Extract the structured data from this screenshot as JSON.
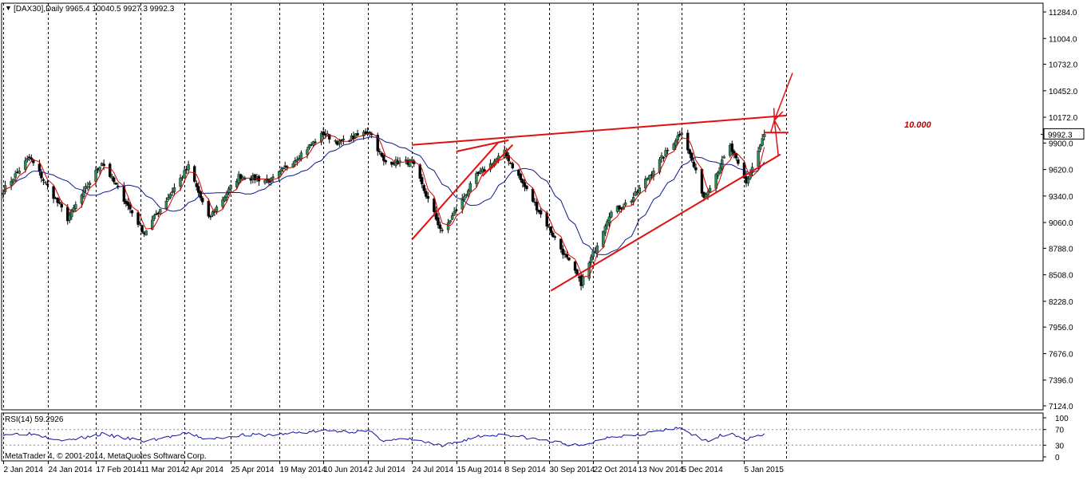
{
  "header": {
    "menu_glyph": "▼",
    "symbol_info": "[DAX30],Daily  9965.4 10040.5 9927.3 9992.3"
  },
  "rsi_panel": {
    "label": "RSI(14) 59.2926",
    "copyright": "MetaTrader 4, © 2001-2014, MetaQuotes Software Corp."
  },
  "annotation": {
    "text": "10.000"
  },
  "colors": {
    "bull_candle": "#2e8b57",
    "bear_candle": "#000000",
    "ma_fast": "#d40000",
    "ma_slow": "#0b1a8c",
    "trendline": "#e01010",
    "annotation": "#c00000",
    "rsi_line": "#1010a0",
    "grid": "#000000",
    "price_marker_bg": "#ffffff"
  },
  "chart_data": [
    {
      "type": "candlestick",
      "symbol": "DAX30",
      "timeframe": "Daily",
      "last_close": 9992.3,
      "last_price_label": "9992.3",
      "ylim": [
        7124,
        11400
      ],
      "y_ticks": [
        11284.0,
        11004.0,
        10732.0,
        10452.0,
        10172.0,
        9900.0,
        9620.0,
        9340.0,
        9060.0,
        8788.0,
        8508.0,
        8228.0,
        7956.0,
        7676.0,
        7396.0,
        7124.0
      ],
      "y_tick_labels": [
        "11284.0",
        "11004.0",
        "10732.0",
        "10452.0",
        "10172.0",
        "9900.0",
        "9620.0",
        "9340.0",
        "9060.0",
        "8788.0",
        "8508.0",
        "8228.0",
        "7956.0",
        "7676.0",
        "7396.0",
        "7124.0"
      ],
      "x_labels": [
        "2 Jan 2014",
        "24 Jan 2014",
        "17 Feb 2014",
        "11 Mar 2014",
        "2 Apr 2014",
        "25 Apr 2014",
        "19 May 2014",
        "10 Jun 2014",
        "2 Jul 2014",
        "24 Jul 2014",
        "15 Aug 2014",
        "8 Sep 2014",
        "30 Sep 2014",
        "22 Oct 2014",
        "13 Nov 2014",
        "5 Dec 2014",
        "5 Jan 2015"
      ],
      "grid": "vertical dotted",
      "key_points": [
        {
          "date": "2 Jan 2014",
          "close": 9400
        },
        {
          "date": "15 Jan 2014",
          "close": 9750
        },
        {
          "date": "3 Feb 2014",
          "close": 9100
        },
        {
          "date": "20 Feb 2014",
          "close": 9700
        },
        {
          "date": "13 Mar 2014",
          "close": 8950
        },
        {
          "date": "4 Apr 2014",
          "close": 9650
        },
        {
          "date": "14 Apr 2014",
          "close": 9100
        },
        {
          "date": "29 Apr 2014",
          "close": 9550
        },
        {
          "date": "15 May 2014",
          "close": 9500
        },
        {
          "date": "10 Jun 2014",
          "close": 10000
        },
        {
          "date": "18 Jun 2014",
          "close": 9900
        },
        {
          "date": "3 Jul 2014",
          "close": 10030
        },
        {
          "date": "10 Jul 2014",
          "close": 9700
        },
        {
          "date": "24 Jul 2014",
          "close": 9700
        },
        {
          "date": "8 Aug 2014",
          "close": 8950
        },
        {
          "date": "25 Aug 2014",
          "close": 9550
        },
        {
          "date": "8 Sep 2014",
          "close": 9800
        },
        {
          "date": "16 Oct 2014",
          "close": 8420
        },
        {
          "date": "30 Oct 2014",
          "close": 9150
        },
        {
          "date": "10 Nov 2014",
          "close": 9300
        },
        {
          "date": "5 Dec 2014",
          "close": 10030
        },
        {
          "date": "16 Dec 2014",
          "close": 9330
        },
        {
          "date": "29 Dec 2014",
          "close": 9860
        },
        {
          "date": "6 Jan 2015",
          "close": 9470
        },
        {
          "date": "15 Jan 2015",
          "close": 9992.3
        }
      ]
    },
    {
      "type": "line",
      "indicator": "RSI(14)",
      "last_value": 59.2926,
      "ylim": [
        0,
        100
      ],
      "y_ticks": [
        100,
        70,
        30,
        0
      ],
      "y_tick_labels": [
        "100",
        "70",
        "30",
        "0"
      ],
      "key_points": [
        {
          "date": "2 Jan 2014",
          "value": 58
        },
        {
          "date": "15 Jan 2014",
          "value": 60
        },
        {
          "date": "3 Feb 2014",
          "value": 42
        },
        {
          "date": "20 Feb 2014",
          "value": 58
        },
        {
          "date": "13 Mar 2014",
          "value": 40
        },
        {
          "date": "4 Apr 2014",
          "value": 60
        },
        {
          "date": "14 Apr 2014",
          "value": 44
        },
        {
          "date": "29 Apr 2014",
          "value": 56
        },
        {
          "date": "15 May 2014",
          "value": 56
        },
        {
          "date": "10 Jun 2014",
          "value": 67
        },
        {
          "date": "3 Jul 2014",
          "value": 64
        },
        {
          "date": "10 Jul 2014",
          "value": 42
        },
        {
          "date": "24 Jul 2014",
          "value": 45
        },
        {
          "date": "8 Aug 2014",
          "value": 27
        },
        {
          "date": "25 Aug 2014",
          "value": 52
        },
        {
          "date": "8 Sep 2014",
          "value": 58
        },
        {
          "date": "16 Oct 2014",
          "value": 27
        },
        {
          "date": "30 Oct 2014",
          "value": 52
        },
        {
          "date": "10 Nov 2014",
          "value": 56
        },
        {
          "date": "5 Dec 2014",
          "value": 74
        },
        {
          "date": "16 Dec 2014",
          "value": 40
        },
        {
          "date": "29 Dec 2014",
          "value": 62
        },
        {
          "date": "6 Jan 2015",
          "value": 44
        },
        {
          "date": "15 Jan 2015",
          "value": 59.2926
        }
      ]
    }
  ],
  "drawings": {
    "lines": [
      {
        "name": "resistance-line",
        "from": {
          "date": "24 Jul 2014",
          "price": 9880
        },
        "to": {
          "date": "26 Jan 2015",
          "price": 10190
        }
      },
      {
        "name": "support-line-summer",
        "from": {
          "date": "24 Jul 2014",
          "price": 8880
        },
        "to": {
          "date": "5 Sep 2014",
          "price": 9910
        }
      },
      {
        "name": "wedge-top-summer",
        "from": {
          "date": "15 Aug 2014",
          "price": 9810
        },
        "to": {
          "date": "10 Sep 2014",
          "price": 9930
        }
      },
      {
        "name": "wedge-bottom-summer",
        "from": {
          "date": "28 Aug 2014",
          "price": 9550
        },
        "to": {
          "date": "12 Sep 2014",
          "price": 9880
        }
      },
      {
        "name": "support-line-main",
        "from": {
          "date": "1 Oct 2014",
          "price": 8340
        },
        "to": {
          "date": "23 Jan 2015",
          "price": 9780
        }
      },
      {
        "name": "target-10000-line",
        "from": {
          "date": "15 Jan 2015",
          "price": 10010
        },
        "to": {
          "date": "27 Jan 2015",
          "price": 10010
        }
      }
    ],
    "arrows": [
      {
        "name": "up-arrow",
        "from": {
          "date": "20 Jan 2015",
          "price": 10140
        },
        "to": {
          "date": "29 Jan 2015",
          "price": 10640
        }
      },
      {
        "name": "down-arrow",
        "from": {
          "date": "20 Jan 2015",
          "price": 10140
        },
        "to": {
          "date": "22 Jan 2015",
          "price": 9760
        }
      }
    ]
  }
}
